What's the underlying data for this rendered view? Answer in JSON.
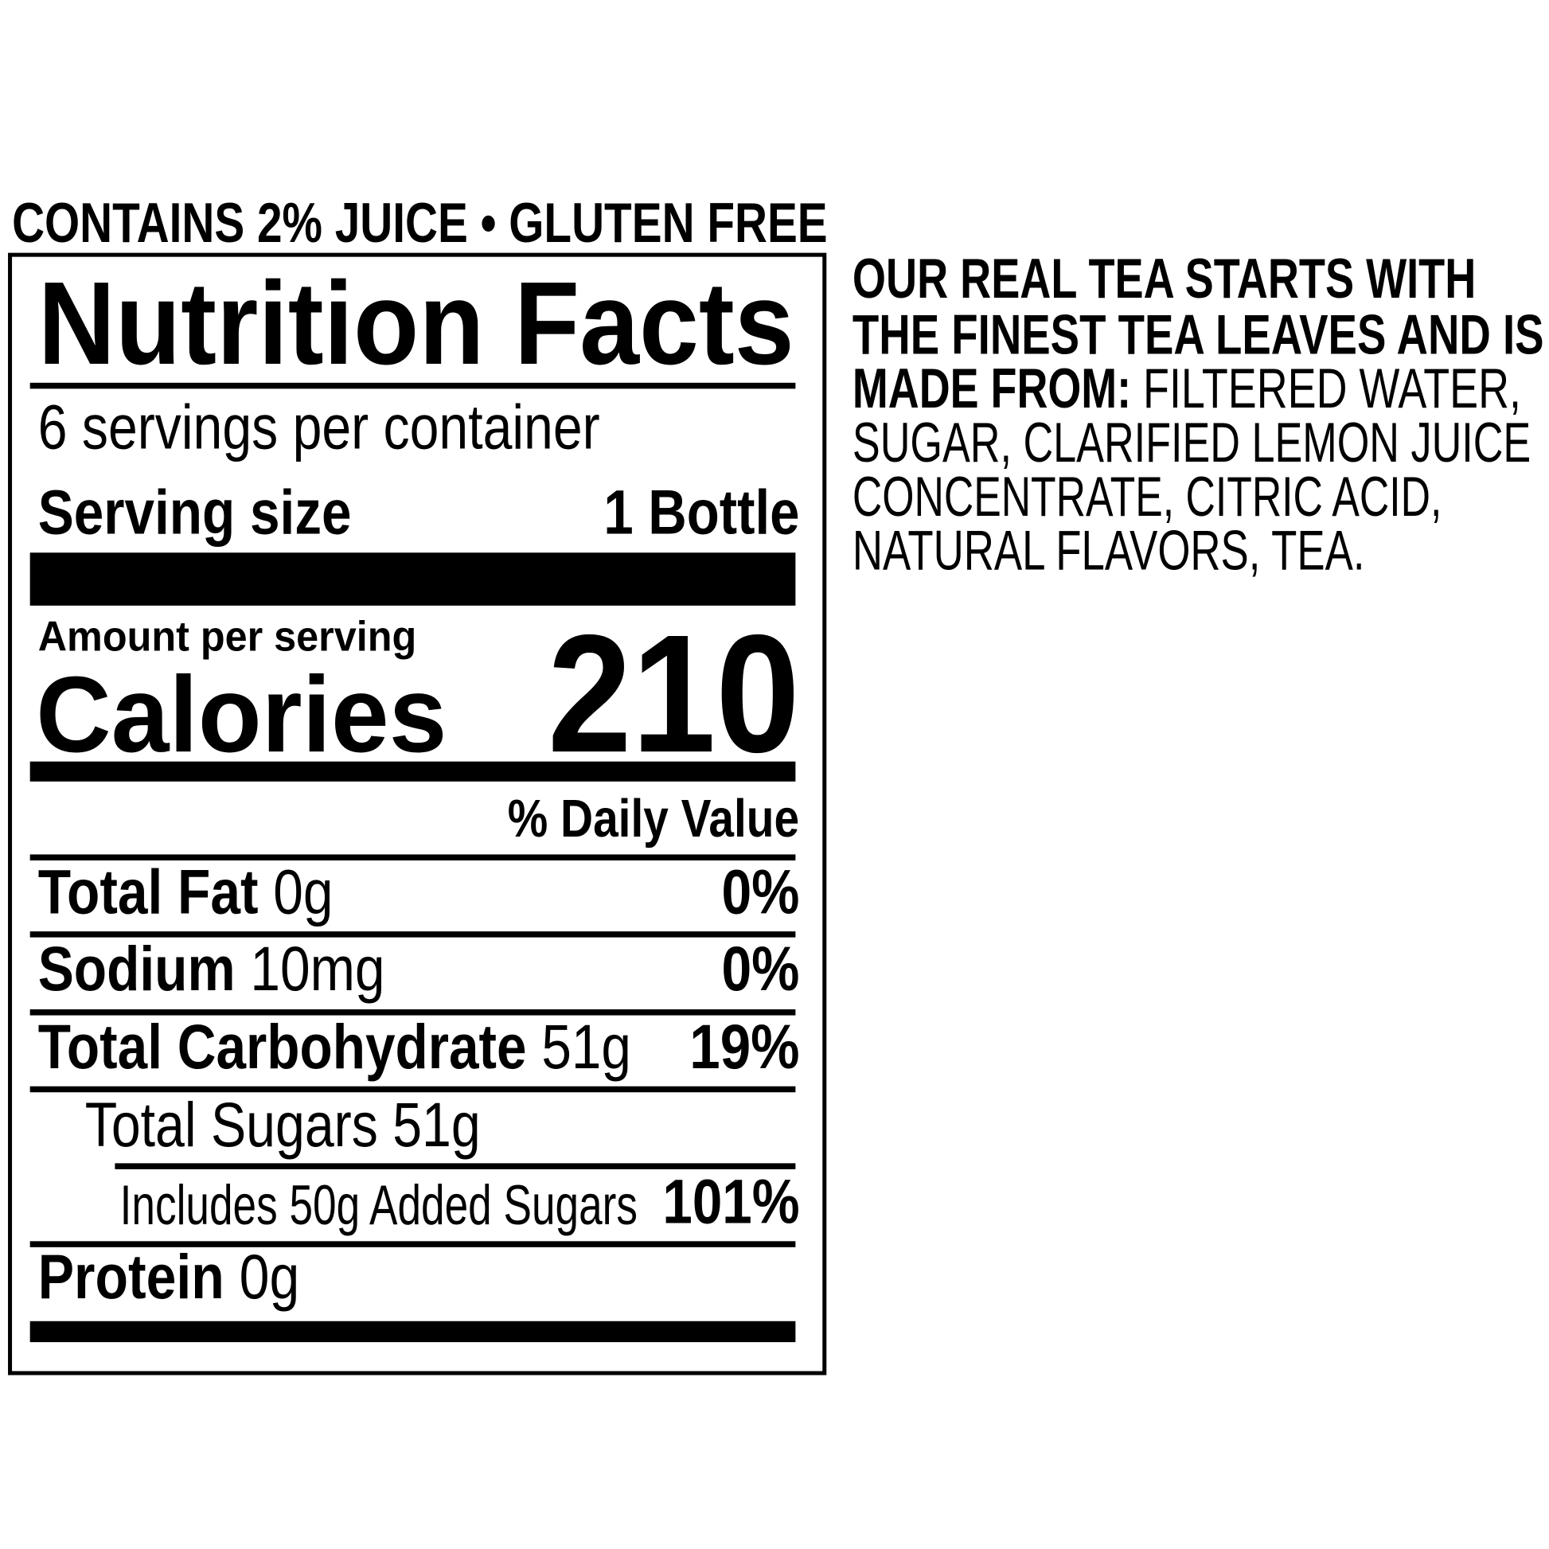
{
  "header_claims": "CONTAINS 2% JUICE • GLUTEN FREE",
  "nutrition": {
    "title": "Nutrition Facts",
    "servings_per_container": "6 servings per container",
    "serving_size_label": "Serving size",
    "serving_size_value": "1 Bottle",
    "amount_per_serving": "Amount per serving",
    "calories_label": "Calories",
    "calories_value": "210",
    "daily_value_header": "% Daily Value",
    "rows": [
      {
        "label": "Total Fat",
        "amount": "0g",
        "dv": "0%"
      },
      {
        "label": "Sodium",
        "amount": "10mg",
        "dv": "0%"
      },
      {
        "label": "Total Carbohydrate",
        "amount": "51g",
        "dv": "19%"
      },
      {
        "label": "Total Sugars 51g",
        "amount": "",
        "dv": ""
      },
      {
        "label": "Includes 50g Added Sugars",
        "amount": "",
        "dv": "101%"
      },
      {
        "label": "Protein",
        "amount": "0g",
        "dv": ""
      }
    ]
  },
  "ingredients": {
    "lines": [
      {
        "bold": "OUR REAL TEA STARTS WITH",
        "regular": ""
      },
      {
        "bold": "THE FINEST TEA LEAVES AND IS",
        "regular": ""
      },
      {
        "bold": "MADE FROM:",
        "regular": " FILTERED WATER,"
      },
      {
        "bold": "",
        "regular": "SUGAR, CLARIFIED LEMON JUICE"
      },
      {
        "bold": "",
        "regular": "CONCENTRATE, CITRIC ACID,"
      },
      {
        "bold": "",
        "regular": "NATURAL FLAVORS, TEA."
      }
    ]
  }
}
